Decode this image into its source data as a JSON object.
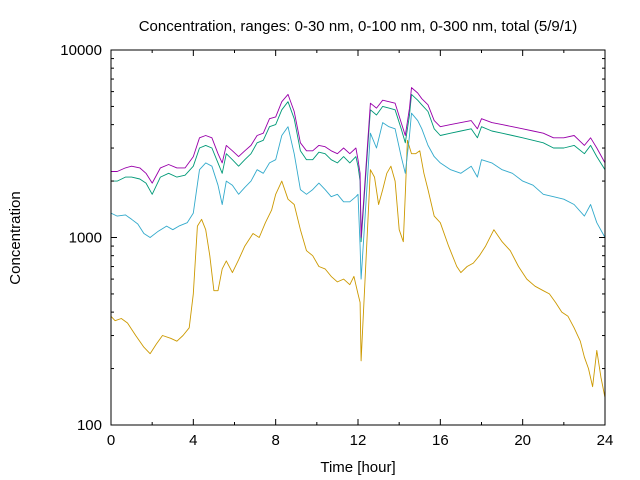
{
  "chart_data": {
    "type": "line",
    "title": "Concentration, ranges: 0-30 nm, 0-100 nm, 0-300 nm, total (5/9/1)",
    "xlabel": "Time [hour]",
    "ylabel": "Concentration",
    "xlim": [
      0,
      24
    ],
    "ylim": [
      100,
      10000
    ],
    "yscale": "log",
    "grid": false,
    "legend": "none",
    "x_ticks": [
      "0",
      "4",
      "8",
      "12",
      "16",
      "20",
      "24"
    ],
    "y_ticks": [
      "100",
      "1000",
      "10000"
    ],
    "series": [
      {
        "color": "#cc9900",
        "x": [
          0,
          0.2,
          0.5,
          0.8,
          1.2,
          1.6,
          1.9,
          2.2,
          2.5,
          2.9,
          3.2,
          3.5,
          3.8,
          4.0,
          4.2,
          4.4,
          4.6,
          4.8,
          5.0,
          5.2,
          5.4,
          5.6,
          5.9,
          6.2,
          6.5,
          6.9,
          7.2,
          7.5,
          7.8,
          8.0,
          8.3,
          8.6,
          8.9,
          9.2,
          9.5,
          9.8,
          10.1,
          10.4,
          10.7,
          11.0,
          11.3,
          11.6,
          11.8,
          12.0,
          12.1,
          12.15,
          12.6,
          12.8,
          13.0,
          13.2,
          13.4,
          13.6,
          13.8,
          14.0,
          14.2,
          14.3,
          14.4,
          14.6,
          14.8,
          15.0,
          15.2,
          15.4,
          15.7,
          16.0,
          16.4,
          16.8,
          17.0,
          17.3,
          17.6,
          17.9,
          18.2,
          18.6,
          19.0,
          19.4,
          19.8,
          20.2,
          20.6,
          21.0,
          21.3,
          21.6,
          21.9,
          22.2,
          22.5,
          22.8,
          23.0,
          23.2,
          23.4,
          23.6,
          23.8,
          24.0
        ],
        "values": [
          380,
          360,
          370,
          350,
          300,
          260,
          240,
          270,
          300,
          290,
          280,
          300,
          330,
          500,
          1150,
          1250,
          1100,
          800,
          520,
          520,
          680,
          750,
          650,
          760,
          900,
          1050,
          1000,
          1200,
          1400,
          1700,
          2000,
          1600,
          1500,
          1100,
          850,
          800,
          700,
          680,
          620,
          580,
          600,
          560,
          620,
          500,
          450,
          220,
          2300,
          2100,
          1500,
          1800,
          2200,
          2400,
          2000,
          1100,
          950,
          1700,
          3300,
          2800,
          2800,
          2900,
          2200,
          1800,
          1300,
          1200,
          900,
          700,
          650,
          700,
          730,
          800,
          900,
          1100,
          950,
          850,
          700,
          600,
          550,
          520,
          500,
          450,
          400,
          380,
          330,
          280,
          230,
          200,
          160,
          250,
          180,
          140
        ]
      },
      {
        "color": "#33aacc",
        "x": [
          0,
          0.3,
          0.7,
          1.0,
          1.3,
          1.6,
          1.9,
          2.3,
          2.7,
          3.0,
          3.3,
          3.7,
          4.0,
          4.3,
          4.6,
          4.9,
          5.2,
          5.4,
          5.6,
          5.9,
          6.2,
          6.5,
          6.8,
          7.1,
          7.4,
          7.7,
          8.0,
          8.3,
          8.6,
          8.9,
          9.2,
          9.5,
          9.8,
          10.1,
          10.4,
          10.7,
          11.0,
          11.3,
          11.6,
          11.9,
          12.0,
          12.1,
          12.15,
          12.6,
          12.9,
          13.2,
          13.5,
          13.8,
          14.1,
          14.3,
          14.5,
          14.6,
          14.9,
          15.1,
          15.4,
          15.7,
          16.0,
          16.5,
          17.0,
          17.5,
          17.8,
          18.0,
          18.5,
          19.0,
          19.5,
          20.0,
          20.5,
          21.0,
          21.5,
          22.0,
          22.5,
          23.0,
          23.3,
          23.6,
          24.0
        ],
        "values": [
          1350,
          1300,
          1320,
          1250,
          1180,
          1050,
          1000,
          1080,
          1150,
          1100,
          1150,
          1200,
          1350,
          2300,
          2500,
          2400,
          1900,
          1500,
          2000,
          1900,
          1700,
          1850,
          2000,
          2300,
          2200,
          2500,
          2600,
          3500,
          3900,
          2800,
          1800,
          1700,
          1800,
          1950,
          1800,
          1650,
          1700,
          1550,
          1550,
          1650,
          1700,
          900,
          600,
          3600,
          3000,
          4100,
          3900,
          3800,
          2700,
          2200,
          3500,
          4600,
          4200,
          3800,
          3100,
          2700,
          2500,
          2300,
          2200,
          2400,
          2100,
          2600,
          2500,
          2300,
          2200,
          2000,
          1900,
          1700,
          1650,
          1600,
          1500,
          1300,
          1500,
          1200,
          1000
        ]
      },
      {
        "color": "#009977",
        "x": [
          0,
          0.3,
          0.7,
          1.0,
          1.4,
          1.7,
          2.0,
          2.4,
          2.8,
          3.2,
          3.6,
          4.0,
          4.3,
          4.6,
          4.9,
          5.2,
          5.4,
          5.6,
          5.9,
          6.2,
          6.5,
          6.8,
          7.1,
          7.4,
          7.7,
          8.0,
          8.3,
          8.6,
          8.9,
          9.2,
          9.5,
          9.8,
          10.1,
          10.4,
          10.7,
          11.0,
          11.3,
          11.6,
          11.9,
          12.0,
          12.1,
          12.15,
          12.6,
          12.9,
          13.2,
          13.5,
          13.8,
          14.1,
          14.3,
          14.5,
          14.6,
          14.9,
          15.1,
          15.4,
          15.7,
          16.0,
          16.5,
          17.0,
          17.5,
          17.8,
          18.0,
          18.5,
          19.0,
          19.5,
          20.0,
          20.5,
          21.0,
          21.5,
          22.0,
          22.5,
          23.0,
          23.3,
          23.6,
          24.0
        ],
        "values": [
          2000,
          2000,
          2100,
          2100,
          2050,
          1950,
          1700,
          2100,
          2200,
          2100,
          2150,
          2400,
          3000,
          3100,
          3000,
          2500,
          2200,
          2800,
          2600,
          2400,
          2600,
          2800,
          3200,
          3300,
          3900,
          4000,
          4800,
          5300,
          4300,
          2900,
          2600,
          2600,
          2850,
          2800,
          2600,
          2500,
          2700,
          2500,
          2700,
          2400,
          2000,
          950,
          4800,
          4500,
          5000,
          4900,
          4800,
          3800,
          3200,
          4500,
          5800,
          5400,
          5100,
          4700,
          3800,
          3500,
          3600,
          3700,
          3800,
          3400,
          3900,
          3700,
          3600,
          3500,
          3400,
          3300,
          3200,
          3000,
          3000,
          3100,
          2800,
          3100,
          2700,
          2300
        ]
      },
      {
        "color": "#9900aa",
        "x": [
          0,
          0.3,
          0.7,
          1.0,
          1.4,
          1.7,
          2.0,
          2.4,
          2.8,
          3.2,
          3.6,
          4.0,
          4.3,
          4.6,
          4.9,
          5.2,
          5.4,
          5.6,
          5.9,
          6.2,
          6.5,
          6.8,
          7.1,
          7.4,
          7.7,
          8.0,
          8.3,
          8.6,
          8.9,
          9.2,
          9.5,
          9.8,
          10.1,
          10.4,
          10.7,
          11.0,
          11.3,
          11.6,
          11.9,
          12.0,
          12.1,
          12.15,
          12.6,
          12.9,
          13.2,
          13.5,
          13.8,
          14.1,
          14.3,
          14.5,
          14.6,
          14.9,
          15.1,
          15.4,
          15.7,
          16.0,
          16.5,
          17.0,
          17.5,
          17.8,
          18.0,
          18.5,
          19.0,
          19.5,
          20.0,
          20.5,
          21.0,
          21.5,
          22.0,
          22.5,
          23.0,
          23.3,
          23.6,
          24.0
        ],
        "values": [
          2250,
          2250,
          2350,
          2400,
          2350,
          2200,
          1950,
          2350,
          2450,
          2350,
          2350,
          2700,
          3400,
          3500,
          3400,
          2800,
          2500,
          3100,
          2900,
          2700,
          2900,
          3100,
          3500,
          3600,
          4300,
          4400,
          5300,
          5800,
          4700,
          3200,
          2900,
          2900,
          3100,
          3050,
          2900,
          2800,
          3000,
          2800,
          3000,
          2600,
          2200,
          1000,
          5200,
          4900,
          5400,
          5300,
          5200,
          4100,
          3500,
          4900,
          6300,
          5900,
          5500,
          5100,
          4200,
          3900,
          4000,
          4100,
          4200,
          3800,
          4300,
          4100,
          4000,
          3900,
          3800,
          3700,
          3600,
          3400,
          3400,
          3500,
          3100,
          3400,
          3000,
          2500
        ]
      }
    ]
  }
}
